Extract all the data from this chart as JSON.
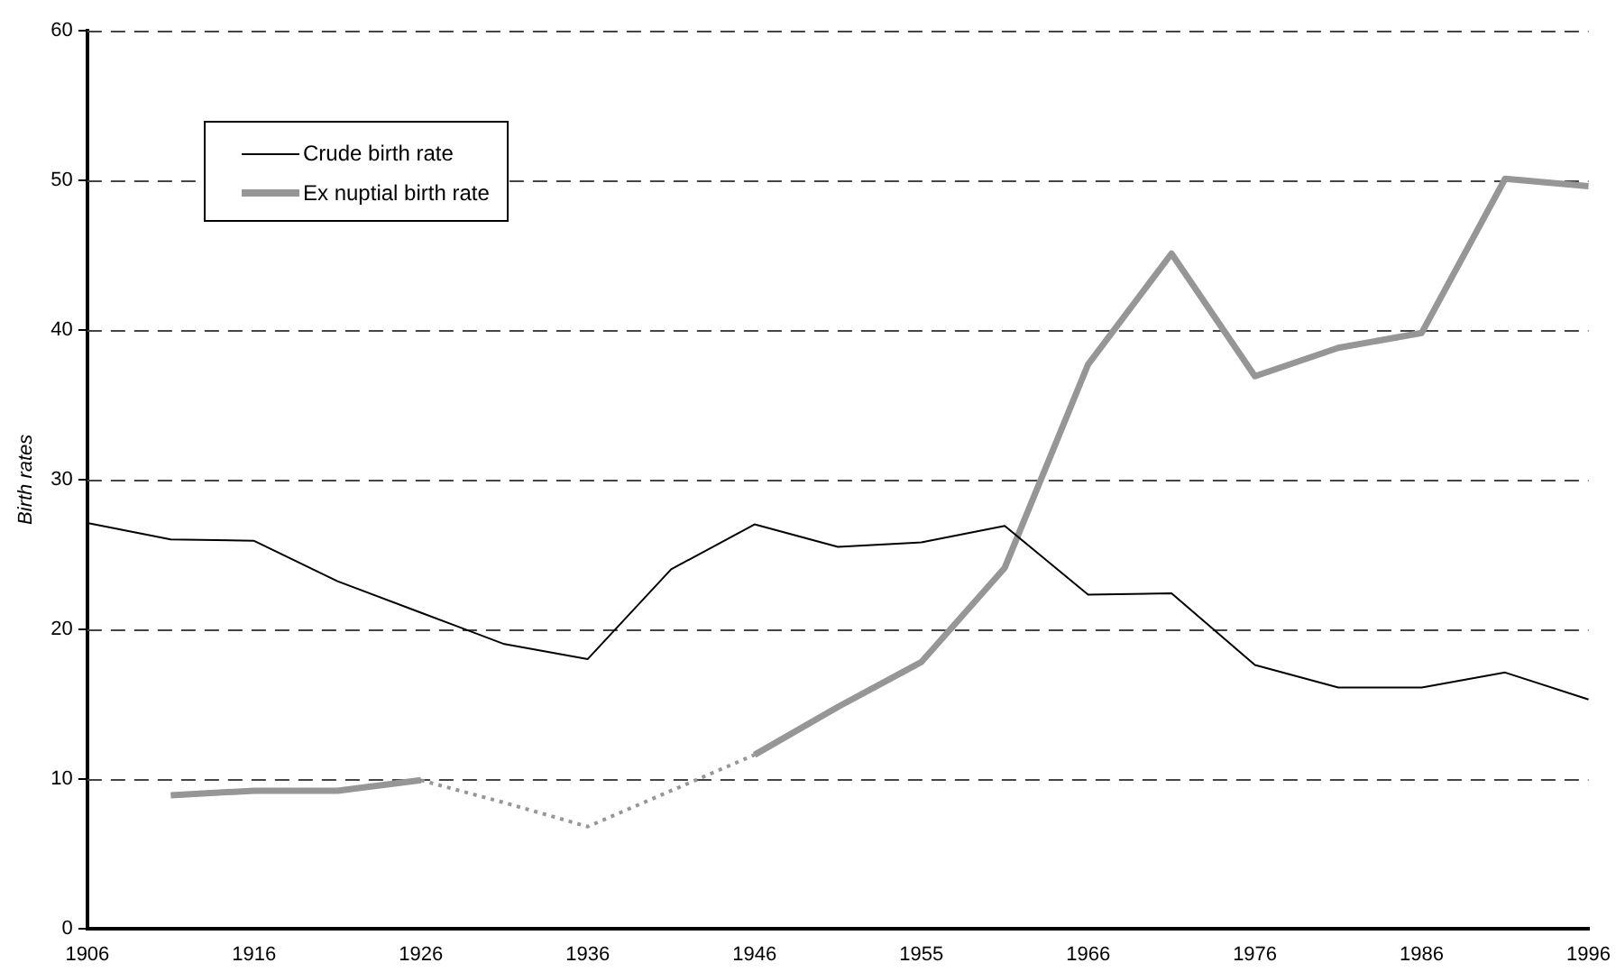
{
  "chart_data": {
    "type": "line",
    "ylabel": "Birth rates",
    "categories": [
      "1906",
      null,
      "1916",
      null,
      "1926",
      null,
      "1936",
      null,
      "1946",
      null,
      "1955",
      null,
      "1966",
      null,
      "1976",
      null,
      "1986",
      null,
      "1996"
    ],
    "series": [
      {
        "name": "Crude birth rate",
        "color": "#000000",
        "line_style": "solid",
        "values": [
          27.1,
          26.0,
          25.9,
          23.2,
          21.1,
          19.0,
          18.0,
          24.0,
          27.0,
          25.5,
          25.8,
          26.9,
          22.3,
          22.4,
          17.6,
          16.1,
          16.1,
          17.1,
          15.3
        ]
      },
      {
        "name": "Ex nuptial birth rate",
        "color": "#969696",
        "line_style": "solid",
        "values": [
          null,
          8.9,
          9.2,
          9.2,
          9.9,
          null,
          null,
          null,
          11.6,
          14.8,
          17.8,
          24.1,
          37.7,
          45.1,
          36.9,
          38.8,
          39.8,
          50.1,
          49.6
        ]
      },
      {
        "color": "#969696",
        "line_style": "dotted",
        "values": [
          null,
          null,
          null,
          null,
          9.9,
          8.4,
          6.8,
          9.2,
          11.6,
          null,
          null,
          null,
          null,
          null,
          null,
          null,
          null,
          null,
          null
        ]
      }
    ],
    "ylim": [
      0,
      60
    ],
    "yticks": [
      0,
      10,
      20,
      30,
      40,
      50,
      60
    ],
    "grid": "y",
    "legend": "top left",
    "marker": "none"
  }
}
